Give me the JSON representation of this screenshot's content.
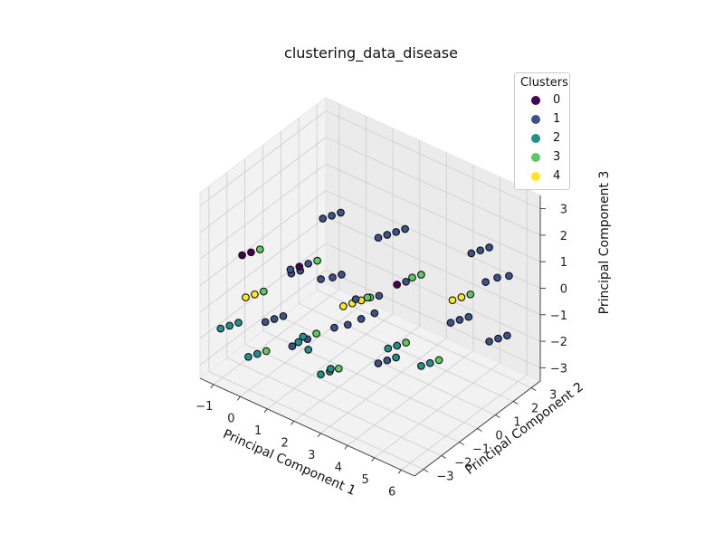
{
  "chart_data": {
    "type": "scatter3d",
    "title": "clustering_data_disease",
    "xlabel": "Principal Component 1",
    "ylabel": "Principal Component 2",
    "zlabel": "Principal Component 3",
    "xlim": [
      -1.5,
      6.5
    ],
    "ylim": [
      -3.5,
      3.5
    ],
    "zlim": [
      -3.5,
      3.5
    ],
    "xticks": [
      -1,
      0,
      1,
      2,
      3,
      4,
      5,
      6
    ],
    "yticks": [
      -3,
      -2,
      -1,
      0,
      1,
      2,
      3
    ],
    "zticks": [
      -3,
      -2,
      -1,
      0,
      1,
      2,
      3
    ],
    "grid": true,
    "legend": {
      "title": "Clusters",
      "placement": "top-right",
      "entries": [
        {
          "label": "0",
          "color": "#440154"
        },
        {
          "label": "1",
          "color": "#3b528b"
        },
        {
          "label": "2",
          "color": "#21918c"
        },
        {
          "label": "3",
          "color": "#5ec962"
        },
        {
          "label": "4",
          "color": "#fde725"
        }
      ]
    },
    "points": [
      {
        "x": -0.8,
        "y": -2.2,
        "z": 0.8,
        "cluster": 0
      },
      {
        "x": -0.6,
        "y": -2.0,
        "z": 0.9,
        "cluster": 0
      },
      {
        "x": -0.4,
        "y": -1.8,
        "z": 1.0,
        "cluster": 3
      },
      {
        "x": 0.6,
        "y": 0.2,
        "z": 1.6,
        "cluster": 1
      },
      {
        "x": 0.8,
        "y": 0.4,
        "z": 1.7,
        "cluster": 1
      },
      {
        "x": 1.0,
        "y": 0.6,
        "z": 1.8,
        "cluster": 1
      },
      {
        "x": 0.6,
        "y": -1.6,
        "z": 0.6,
        "cluster": 1
      },
      {
        "x": 0.8,
        "y": -1.4,
        "z": 0.7,
        "cluster": 0
      },
      {
        "x": 1.0,
        "y": -1.2,
        "z": 0.8,
        "cluster": 1
      },
      {
        "x": 1.2,
        "y": -1.0,
        "z": 0.9,
        "cluster": 3
      },
      {
        "x": 2.4,
        "y": 0.6,
        "z": 1.5,
        "cluster": 1
      },
      {
        "x": 2.6,
        "y": 0.8,
        "z": 1.6,
        "cluster": 1
      },
      {
        "x": 2.8,
        "y": 1.0,
        "z": 1.7,
        "cluster": 1
      },
      {
        "x": 3.0,
        "y": 1.2,
        "z": 1.8,
        "cluster": 1
      },
      {
        "x": 0.5,
        "y": -1.4,
        "z": 0.3,
        "cluster": 1
      },
      {
        "x": 0.7,
        "y": -1.2,
        "z": 0.4,
        "cluster": 1
      },
      {
        "x": 1.2,
        "y": -0.8,
        "z": 0.1,
        "cluster": 1
      },
      {
        "x": 1.5,
        "y": -0.6,
        "z": 0.2,
        "cluster": 1
      },
      {
        "x": 1.7,
        "y": -0.4,
        "z": 0.3,
        "cluster": 1
      },
      {
        "x": 2.3,
        "y": -0.5,
        "z": -0.3,
        "cluster": 1
      },
      {
        "x": 2.6,
        "y": -0.3,
        "z": -0.2,
        "cluster": 3
      },
      {
        "x": 2.9,
        "y": -0.1,
        "z": -0.1,
        "cluster": 1
      },
      {
        "x": 3.3,
        "y": 0.3,
        "z": 0.3,
        "cluster": 0
      },
      {
        "x": 3.5,
        "y": 0.5,
        "z": 0.4,
        "cluster": 1
      },
      {
        "x": 3.6,
        "y": 0.7,
        "z": 0.5,
        "cluster": 3
      },
      {
        "x": 3.8,
        "y": 0.9,
        "z": 0.6,
        "cluster": 3
      },
      {
        "x": 4.8,
        "y": 2.2,
        "z": 1.2,
        "cluster": 1
      },
      {
        "x": 5.0,
        "y": 2.4,
        "z": 1.3,
        "cluster": 1
      },
      {
        "x": 5.2,
        "y": 2.6,
        "z": 1.4,
        "cluster": 1
      },
      {
        "x": -0.4,
        "y": -2.6,
        "z": -0.4,
        "cluster": 4
      },
      {
        "x": -0.2,
        "y": -2.4,
        "z": -0.3,
        "cluster": 4
      },
      {
        "x": 0.0,
        "y": -2.2,
        "z": -0.2,
        "cluster": 3
      },
      {
        "x": 1.9,
        "y": -0.6,
        "z": -0.7,
        "cluster": 4
      },
      {
        "x": 2.1,
        "y": -0.4,
        "z": -0.6,
        "cluster": 4
      },
      {
        "x": 2.3,
        "y": -0.2,
        "z": -0.5,
        "cluster": 4
      },
      {
        "x": 2.5,
        "y": 0.0,
        "z": -0.4,
        "cluster": 3
      },
      {
        "x": 4.5,
        "y": 1.6,
        "z": -0.4,
        "cluster": 4
      },
      {
        "x": 4.7,
        "y": 1.8,
        "z": -0.3,
        "cluster": 4
      },
      {
        "x": 4.9,
        "y": 2.0,
        "z": -0.2,
        "cluster": 3
      },
      {
        "x": 5.2,
        "y": 2.4,
        "z": 0.2,
        "cluster": 1
      },
      {
        "x": 5.5,
        "y": 2.6,
        "z": 0.4,
        "cluster": 1
      },
      {
        "x": 5.8,
        "y": 2.8,
        "z": 0.5,
        "cluster": 1
      },
      {
        "x": 0.0,
        "y": -2.1,
        "z": -1.4,
        "cluster": 1
      },
      {
        "x": 0.2,
        "y": -1.9,
        "z": -1.3,
        "cluster": 1
      },
      {
        "x": 0.4,
        "y": -1.7,
        "z": -1.2,
        "cluster": 1
      },
      {
        "x": 1.7,
        "y": -0.8,
        "z": -1.5,
        "cluster": 1
      },
      {
        "x": 2.0,
        "y": -0.5,
        "z": -1.4,
        "cluster": 1
      },
      {
        "x": 2.3,
        "y": -0.2,
        "z": -1.2,
        "cluster": 1
      },
      {
        "x": 2.6,
        "y": 0.1,
        "z": -1.0,
        "cluster": 1
      },
      {
        "x": 4.5,
        "y": 1.5,
        "z": -1.2,
        "cluster": 1
      },
      {
        "x": 4.7,
        "y": 1.7,
        "z": -1.1,
        "cluster": 1
      },
      {
        "x": 4.9,
        "y": 1.9,
        "z": -1.0,
        "cluster": 1
      },
      {
        "x": -1.0,
        "y": -3.1,
        "z": -1.6,
        "cluster": 2
      },
      {
        "x": -0.8,
        "y": -2.9,
        "z": -1.5,
        "cluster": 2
      },
      {
        "x": -0.6,
        "y": -2.7,
        "z": -1.4,
        "cluster": 2
      },
      {
        "x": 0.9,
        "y": -1.6,
        "z": -2.0,
        "cluster": 2
      },
      {
        "x": 1.0,
        "y": -1.5,
        "z": -1.8,
        "cluster": 2
      },
      {
        "x": 1.1,
        "y": -1.4,
        "z": -1.9,
        "cluster": 1
      },
      {
        "x": 1.3,
        "y": -1.2,
        "z": -1.7,
        "cluster": 3
      },
      {
        "x": 0.8,
        "y": -1.8,
        "z": -2.1,
        "cluster": 1
      },
      {
        "x": 1.2,
        "y": -1.5,
        "z": -2.2,
        "cluster": 2
      },
      {
        "x": 3.1,
        "y": 0.1,
        "z": -2.1,
        "cluster": 2
      },
      {
        "x": 3.3,
        "y": 0.3,
        "z": -2.0,
        "cluster": 2
      },
      {
        "x": 3.5,
        "y": 0.5,
        "z": -1.9,
        "cluster": 3
      },
      {
        "x": 3.0,
        "y": -0.3,
        "z": -2.5,
        "cluster": 1
      },
      {
        "x": 3.2,
        "y": -0.1,
        "z": -2.4,
        "cluster": 1
      },
      {
        "x": 3.4,
        "y": 0.1,
        "z": -2.3,
        "cluster": 2
      },
      {
        "x": 5.4,
        "y": 2.3,
        "z": -1.9,
        "cluster": 1
      },
      {
        "x": 5.6,
        "y": 2.5,
        "z": -1.8,
        "cluster": 1
      },
      {
        "x": 5.8,
        "y": 2.7,
        "z": -1.7,
        "cluster": 1
      },
      {
        "x": -0.3,
        "y": -2.6,
        "z": -2.6,
        "cluster": 2
      },
      {
        "x": -0.1,
        "y": -2.4,
        "z": -2.5,
        "cluster": 2
      },
      {
        "x": 0.1,
        "y": -2.2,
        "z": -2.4,
        "cluster": 3
      },
      {
        "x": 1.6,
        "y": -1.4,
        "z": -3.0,
        "cluster": 2
      },
      {
        "x": 1.8,
        "y": -1.2,
        "z": -2.9,
        "cluster": 2
      },
      {
        "x": 2.0,
        "y": -1.0,
        "z": -2.8,
        "cluster": 3
      },
      {
        "x": 1.9,
        "y": -1.3,
        "z": -2.7,
        "cluster": 2
      },
      {
        "x": 4.0,
        "y": 0.6,
        "z": -2.6,
        "cluster": 2
      },
      {
        "x": 4.2,
        "y": 0.8,
        "z": -2.5,
        "cluster": 2
      },
      {
        "x": 4.4,
        "y": 1.0,
        "z": -2.4,
        "cluster": 3
      }
    ]
  }
}
